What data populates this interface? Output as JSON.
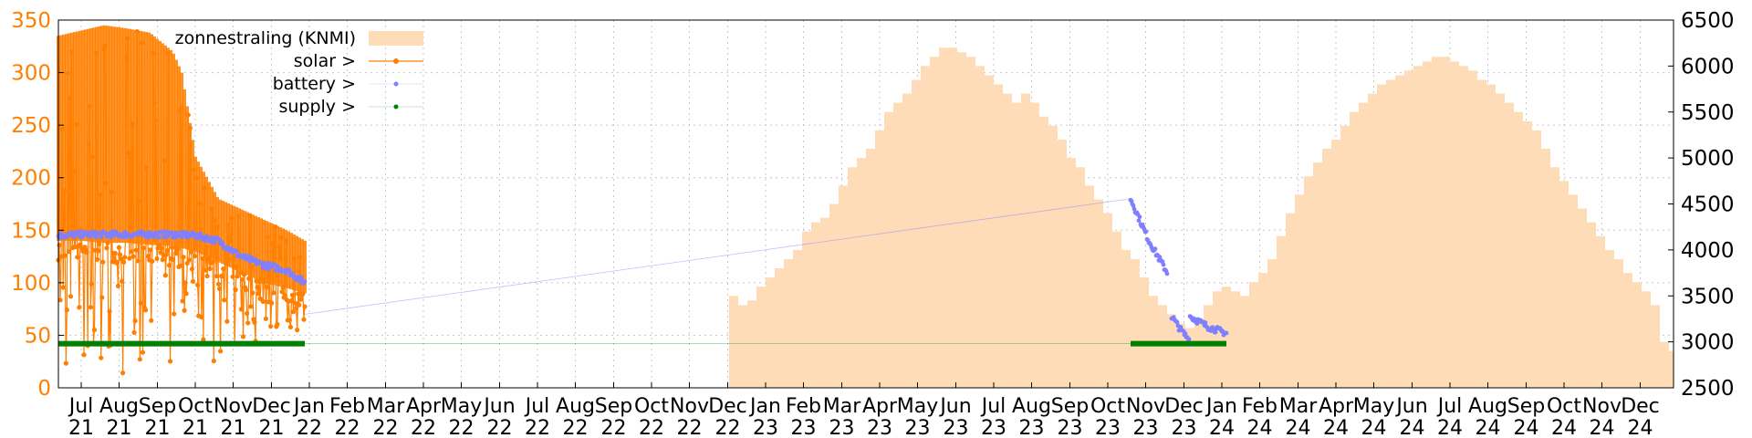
{
  "chart_data": {
    "type": "line",
    "grid": true,
    "legend_position": "top-left",
    "y_left": {
      "min": 0,
      "max": 350,
      "ticks": [
        0,
        50,
        100,
        150,
        200,
        250,
        300,
        350
      ],
      "tick_color": "#ff7f00"
    },
    "y_right": {
      "min": 2500,
      "max": 6500,
      "ticks": [
        2500,
        3000,
        3500,
        4000,
        4500,
        5000,
        5500,
        6000,
        6500
      ]
    },
    "x_range": [
      2021.45,
      2024.99
    ],
    "x_ticks": [
      {
        "x": 2021.5,
        "month": "Jul",
        "year": "21"
      },
      {
        "x": 2021.583,
        "month": "Aug",
        "year": "21"
      },
      {
        "x": 2021.667,
        "month": "Sep",
        "year": "21"
      },
      {
        "x": 2021.75,
        "month": "Oct",
        "year": "21"
      },
      {
        "x": 2021.833,
        "month": "Nov",
        "year": "21"
      },
      {
        "x": 2021.917,
        "month": "Dec",
        "year": "21"
      },
      {
        "x": 2022.0,
        "month": "Jan",
        "year": "22"
      },
      {
        "x": 2022.083,
        "month": "Feb",
        "year": "22"
      },
      {
        "x": 2022.167,
        "month": "Mar",
        "year": "22"
      },
      {
        "x": 2022.25,
        "month": "Apr",
        "year": "22"
      },
      {
        "x": 2022.333,
        "month": "May",
        "year": "22"
      },
      {
        "x": 2022.417,
        "month": "Jun",
        "year": "22"
      },
      {
        "x": 2022.5,
        "month": "Jul",
        "year": "22"
      },
      {
        "x": 2022.583,
        "month": "Aug",
        "year": "22"
      },
      {
        "x": 2022.667,
        "month": "Sep",
        "year": "22"
      },
      {
        "x": 2022.75,
        "month": "Oct",
        "year": "22"
      },
      {
        "x": 2022.833,
        "month": "Nov",
        "year": "22"
      },
      {
        "x": 2022.917,
        "month": "Dec",
        "year": "22"
      },
      {
        "x": 2023.0,
        "month": "Jan",
        "year": "23"
      },
      {
        "x": 2023.083,
        "month": "Feb",
        "year": "23"
      },
      {
        "x": 2023.167,
        "month": "Mar",
        "year": "23"
      },
      {
        "x": 2023.25,
        "month": "Apr",
        "year": "23"
      },
      {
        "x": 2023.333,
        "month": "May",
        "year": "23"
      },
      {
        "x": 2023.417,
        "month": "Jun",
        "year": "23"
      },
      {
        "x": 2023.5,
        "month": "Jul",
        "year": "23"
      },
      {
        "x": 2023.583,
        "month": "Aug",
        "year": "23"
      },
      {
        "x": 2023.667,
        "month": "Sep",
        "year": "23"
      },
      {
        "x": 2023.75,
        "month": "Oct",
        "year": "23"
      },
      {
        "x": 2023.833,
        "month": "Nov",
        "year": "23"
      },
      {
        "x": 2023.917,
        "month": "Dec",
        "year": "23"
      },
      {
        "x": 2024.0,
        "month": "Jan",
        "year": "24"
      },
      {
        "x": 2024.083,
        "month": "Feb",
        "year": "24"
      },
      {
        "x": 2024.167,
        "month": "Mar",
        "year": "24"
      },
      {
        "x": 2024.25,
        "month": "Apr",
        "year": "24"
      },
      {
        "x": 2024.333,
        "month": "May",
        "year": "24"
      },
      {
        "x": 2024.417,
        "month": "Jun",
        "year": "24"
      },
      {
        "x": 2024.5,
        "month": "Jul",
        "year": "24"
      },
      {
        "x": 2024.583,
        "month": "Aug",
        "year": "24"
      },
      {
        "x": 2024.667,
        "month": "Sep",
        "year": "24"
      },
      {
        "x": 2024.75,
        "month": "Oct",
        "year": "24"
      },
      {
        "x": 2024.833,
        "month": "Nov",
        "year": "24"
      },
      {
        "x": 2024.917,
        "month": "Dec",
        "year": "24"
      }
    ],
    "series": [
      {
        "name": "zonnestraling (KNMI)",
        "axis": "right",
        "style": "area",
        "color": "#ffdcb8",
        "x": [
          2022.92,
          2022.94,
          2022.96,
          2022.98,
          2023.0,
          2023.02,
          2023.04,
          2023.06,
          2023.08,
          2023.1,
          2023.12,
          2023.14,
          2023.16,
          2023.18,
          2023.2,
          2023.22,
          2023.24,
          2023.26,
          2023.28,
          2023.3,
          2023.32,
          2023.34,
          2023.36,
          2023.38,
          2023.4,
          2023.42,
          2023.44,
          2023.46,
          2023.48,
          2023.5,
          2023.52,
          2023.54,
          2023.56,
          2023.58,
          2023.6,
          2023.62,
          2023.64,
          2023.66,
          2023.68,
          2023.7,
          2023.72,
          2023.74,
          2023.76,
          2023.78,
          2023.8,
          2023.82,
          2023.84,
          2023.86,
          2023.88,
          2023.9,
          2023.92,
          2023.94,
          2023.96,
          2023.98,
          2024.0,
          2024.02,
          2024.04,
          2024.06,
          2024.08,
          2024.1,
          2024.12,
          2024.14,
          2024.16,
          2024.18,
          2024.2,
          2024.22,
          2024.24,
          2024.26,
          2024.28,
          2024.3,
          2024.32,
          2024.34,
          2024.36,
          2024.38,
          2024.4,
          2024.42,
          2024.44,
          2024.46,
          2024.48,
          2024.5,
          2024.52,
          2024.54,
          2024.56,
          2024.58,
          2024.6,
          2024.62,
          2024.64,
          2024.66,
          2024.68,
          2024.7,
          2024.72,
          2024.74,
          2024.76,
          2024.78,
          2024.8,
          2024.82,
          2024.84,
          2024.86,
          2024.88,
          2024.9,
          2024.92,
          2024.94,
          2024.96,
          2024.98
        ],
        "values": [
          3500,
          3400,
          3450,
          3600,
          3700,
          3800,
          3900,
          4000,
          4200,
          4300,
          4350,
          4500,
          4700,
          4900,
          5000,
          5100,
          5300,
          5500,
          5600,
          5700,
          5850,
          6000,
          6100,
          6200,
          6200,
          6150,
          6100,
          6000,
          5900,
          5800,
          5700,
          5600,
          5700,
          5600,
          5450,
          5350,
          5200,
          5000,
          4900,
          4700,
          4550,
          4400,
          4200,
          4000,
          3900,
          3700,
          3500,
          3400,
          3300,
          3200,
          3150,
          3250,
          3400,
          3550,
          3600,
          3550,
          3500,
          3650,
          3750,
          3900,
          4150,
          4400,
          4600,
          4800,
          4950,
          5100,
          5200,
          5350,
          5500,
          5600,
          5700,
          5800,
          5850,
          5900,
          5950,
          6000,
          6050,
          6100,
          6100,
          6050,
          6000,
          5950,
          5850,
          5800,
          5700,
          5600,
          5500,
          5400,
          5300,
          5100,
          4900,
          4750,
          4600,
          4450,
          4300,
          4150,
          4000,
          3900,
          3750,
          3650,
          3550,
          3400,
          3000,
          2900
        ]
      },
      {
        "name": "solar",
        "legend_label": "solar >",
        "axis": "left",
        "style": "points-noisy",
        "color": "#ff7f00",
        "x": [
          2021.45,
          2021.5,
          2021.55,
          2021.6,
          2021.65,
          2021.7,
          2021.72,
          2021.75,
          2021.8,
          2021.85,
          2021.9,
          2021.95,
          2021.99
        ],
        "upper": [
          335,
          340,
          345,
          342,
          338,
          320,
          300,
          220,
          180,
          170,
          160,
          150,
          140
        ],
        "mid": [
          140,
          140,
          138,
          138,
          136,
          135,
          133,
          130,
          120,
          110,
          100,
          95,
          90
        ],
        "lower": [
          20,
          10,
          10,
          10,
          10,
          10,
          15,
          20,
          25,
          30,
          40,
          45,
          50
        ]
      },
      {
        "name": "battery",
        "legend_label": "battery >",
        "axis": "left",
        "style": "points",
        "color": "#8080ff",
        "segments": [
          {
            "x": [
              2021.45,
              2021.5,
              2021.6,
              2021.7,
              2021.75,
              2021.8,
              2021.85,
              2021.9,
              2021.95,
              2021.99
            ],
            "values": [
              145,
              146,
              146,
              146,
              145,
              140,
              125,
              117,
              112,
              100
            ]
          },
          {
            "x": [
              2023.8,
              2023.82,
              2023.84,
              2023.86,
              2023.88
            ],
            "values": [
              180,
              160,
              140,
              125,
              110
            ]
          },
          {
            "x": [
              2023.89,
              2023.91,
              2023.93
            ],
            "values": [
              68,
              55,
              45
            ]
          },
          {
            "x": [
              2023.93,
              2023.95,
              2023.97,
              2023.99,
              2024.01
            ],
            "values": [
              68,
              63,
              58,
              55,
              52
            ]
          }
        ]
      },
      {
        "name": "supply",
        "legend_label": "supply >",
        "axis": "left",
        "style": "points",
        "color": "#007f00",
        "segments": [
          {
            "x": [
              2021.45,
              2021.99
            ],
            "values": [
              42,
              42
            ]
          },
          {
            "x": [
              2023.8,
              2024.01
            ],
            "values": [
              42,
              42
            ]
          }
        ]
      }
    ],
    "connector": {
      "color": "#8080ff",
      "from": {
        "x": 2021.99,
        "y": 70
      },
      "to": {
        "x": 2023.8,
        "y": 180
      }
    }
  }
}
